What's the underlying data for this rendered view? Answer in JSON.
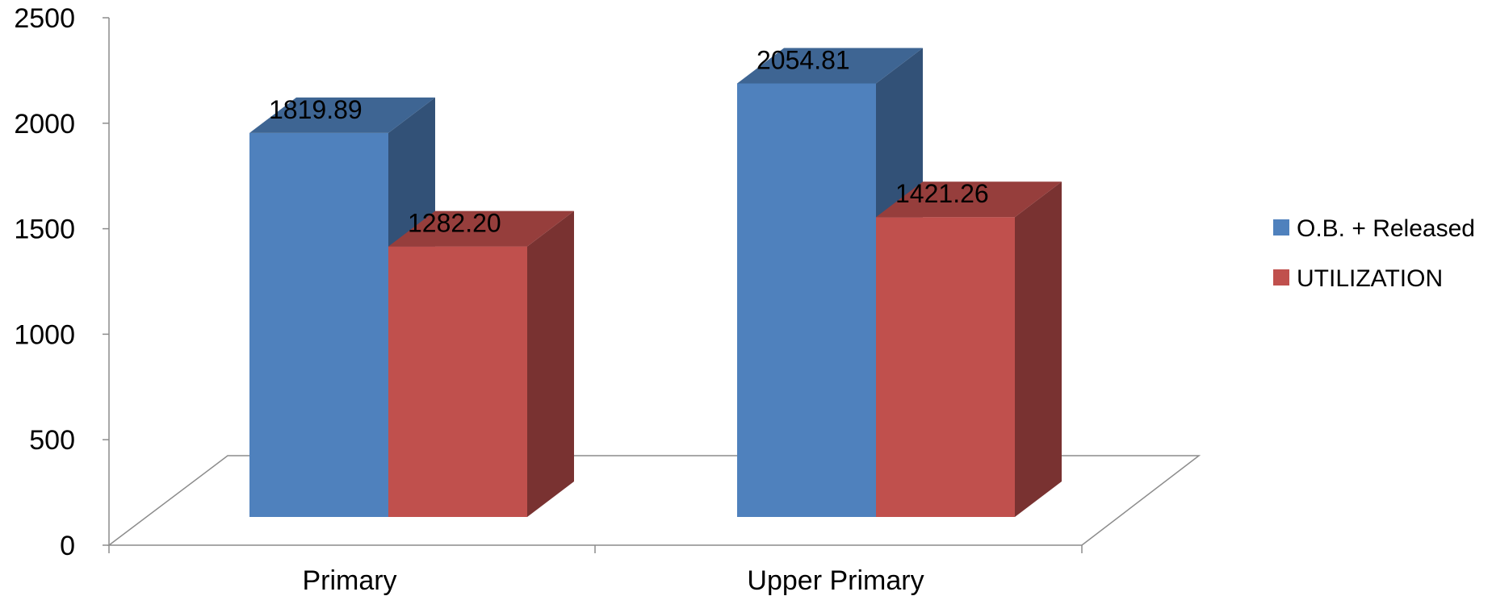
{
  "chart_data": {
    "type": "bar",
    "style": "3d-clustered-column",
    "categories": [
      "Primary",
      "Upper Primary"
    ],
    "series": [
      {
        "name": "O.B. + Released",
        "values": [
          1819.89,
          2054.81
        ],
        "labels": [
          "1819.89",
          "2054.81"
        ],
        "color": "#4F81BD"
      },
      {
        "name": "UTILIZATION",
        "values": [
          1282.2,
          1421.26
        ],
        "labels": [
          "1282.20",
          "1421.26"
        ],
        "color": "#C0504D"
      }
    ],
    "ylim": [
      0,
      2500
    ],
    "yticks": [
      0,
      500,
      1000,
      1500,
      2000,
      2500
    ],
    "ytick_labels": [
      "0",
      "500",
      "1000",
      "1500",
      "2000",
      "2500"
    ],
    "title": "",
    "xlabel": "",
    "ylabel": "",
    "grid": false,
    "legend": "right"
  }
}
